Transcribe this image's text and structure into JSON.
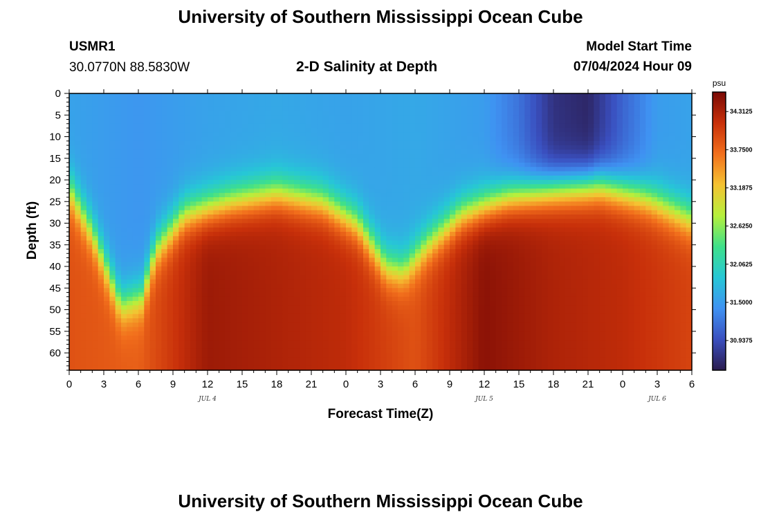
{
  "header": {
    "title": "University of Southern Mississippi Ocean Cube",
    "station": "USMR1",
    "coords": "30.0770N  88.5830W",
    "subtitle": "2-D Salinity at Depth",
    "model_start_label": "Model Start Time",
    "model_start_value": "07/04/2024 Hour 09"
  },
  "footer": {
    "title": "University of Southern Mississippi Ocean Cube"
  },
  "chart_data": {
    "type": "heatmap",
    "xlabel": "Forecast Time(Z)",
    "ylabel": "Depth (ft)",
    "x_range_hours": [
      0,
      54
    ],
    "y_range_ft": [
      0,
      64
    ],
    "x_ticks": [
      "0",
      "3",
      "6",
      "9",
      "12",
      "15",
      "18",
      "21",
      "0",
      "3",
      "6",
      "9",
      "12",
      "15",
      "18",
      "21",
      "0",
      "3",
      "6"
    ],
    "y_ticks": [
      "0",
      "5",
      "10",
      "15",
      "20",
      "25",
      "30",
      "35",
      "40",
      "45",
      "50",
      "55",
      "60"
    ],
    "y_tick_values": [
      0,
      5,
      10,
      15,
      20,
      25,
      30,
      35,
      40,
      45,
      50,
      55,
      60
    ],
    "date_labels": [
      {
        "text": "JUL 4",
        "hour": 12
      },
      {
        "text": "JUL 5",
        "hour": 36
      },
      {
        "text": "JUL 6",
        "hour": 51
      }
    ],
    "colorbar": {
      "unit": "psu",
      "min": 30.5,
      "max": 34.6,
      "labels": [
        "34.3125",
        "33.7500",
        "33.1875",
        "32.6250",
        "32.0625",
        "31.5000",
        "30.9375"
      ],
      "label_values": [
        34.3125,
        33.75,
        33.1875,
        32.625,
        32.0625,
        31.5,
        30.9375
      ],
      "colors": [
        "#2a1b4e",
        "#3a4fbf",
        "#3f92f2",
        "#26c7d6",
        "#3ee08a",
        "#b6f03c",
        "#f5c232",
        "#f26f1c",
        "#c8300a",
        "#7a0a05"
      ]
    },
    "thermocline_depth_ft": [
      {
        "hour": 0,
        "depth": 22
      },
      {
        "hour": 2,
        "depth": 32
      },
      {
        "hour": 4.5,
        "depth": 49
      },
      {
        "hour": 6.3,
        "depth": 47
      },
      {
        "hour": 7.5,
        "depth": 36
      },
      {
        "hour": 10,
        "depth": 28
      },
      {
        "hour": 14,
        "depth": 25
      },
      {
        "hour": 18,
        "depth": 23
      },
      {
        "hour": 22,
        "depth": 25
      },
      {
        "hour": 25,
        "depth": 30
      },
      {
        "hour": 27.5,
        "depth": 40
      },
      {
        "hour": 29,
        "depth": 41
      },
      {
        "hour": 31,
        "depth": 35
      },
      {
        "hour": 34,
        "depth": 28
      },
      {
        "hour": 38,
        "depth": 24
      },
      {
        "hour": 42,
        "depth": 22
      },
      {
        "hour": 46,
        "depth": 21
      },
      {
        "hour": 50,
        "depth": 24
      },
      {
        "hour": 54,
        "depth": 29
      }
    ],
    "surface_salinity_psu": [
      {
        "hour": 0,
        "value": 31.55
      },
      {
        "hour": 6,
        "value": 31.45
      },
      {
        "hour": 12,
        "value": 31.55
      },
      {
        "hour": 18,
        "value": 31.6
      },
      {
        "hour": 24,
        "value": 31.55
      },
      {
        "hour": 30,
        "value": 31.6
      },
      {
        "hour": 36,
        "value": 31.5
      },
      {
        "hour": 39,
        "value": 31.2
      },
      {
        "hour": 42,
        "value": 30.7
      },
      {
        "hour": 45,
        "value": 30.6
      },
      {
        "hour": 48,
        "value": 31.1
      },
      {
        "hour": 51,
        "value": 31.5
      },
      {
        "hour": 54,
        "value": 31.55
      }
    ],
    "deep_salinity_psu": [
      {
        "hour": 0,
        "value": 33.9
      },
      {
        "hour": 6,
        "value": 33.8
      },
      {
        "hour": 12,
        "value": 34.4
      },
      {
        "hour": 18,
        "value": 34.3
      },
      {
        "hour": 24,
        "value": 34.2
      },
      {
        "hour": 30,
        "value": 33.9
      },
      {
        "hour": 36,
        "value": 34.5
      },
      {
        "hour": 42,
        "value": 34.3
      },
      {
        "hour": 48,
        "value": 34.2
      },
      {
        "hour": 54,
        "value": 34.0
      }
    ]
  }
}
